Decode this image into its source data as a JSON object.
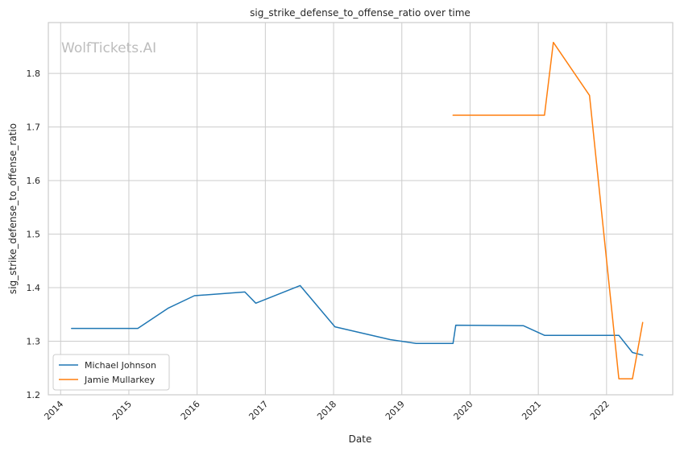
{
  "chart_data": {
    "type": "line",
    "title": "sig_strike_defense_to_offense_ratio over time",
    "xlabel": "Date",
    "ylabel": "sig_strike_defense_to_offense_ratio",
    "watermark": "WolfTickets.AI",
    "x_ticks": [
      "2014",
      "2015",
      "2016",
      "2017",
      "2018",
      "2019",
      "2020",
      "2021",
      "2022"
    ],
    "y_ticks": [
      "1.2",
      "1.3",
      "1.4",
      "1.5",
      "1.6",
      "1.7",
      "1.8"
    ],
    "xlim": [
      2013.82,
      2022.97
    ],
    "ylim": [
      1.2,
      1.895
    ],
    "grid": true,
    "legend_position": "lower-left",
    "series": [
      {
        "name": "Michael Johnson",
        "color": "#1f77b4",
        "points": [
          {
            "x": 2014.16,
            "y": 1.324
          },
          {
            "x": 2015.13,
            "y": 1.324
          },
          {
            "x": 2015.58,
            "y": 1.362
          },
          {
            "x": 2015.96,
            "y": 1.385
          },
          {
            "x": 2016.7,
            "y": 1.392
          },
          {
            "x": 2016.86,
            "y": 1.371
          },
          {
            "x": 2017.51,
            "y": 1.404
          },
          {
            "x": 2018.02,
            "y": 1.327
          },
          {
            "x": 2018.83,
            "y": 1.303
          },
          {
            "x": 2019.21,
            "y": 1.296
          },
          {
            "x": 2019.75,
            "y": 1.296
          },
          {
            "x": 2019.79,
            "y": 1.33
          },
          {
            "x": 2020.78,
            "y": 1.329
          },
          {
            "x": 2021.09,
            "y": 1.311
          },
          {
            "x": 2022.18,
            "y": 1.311
          },
          {
            "x": 2022.38,
            "y": 1.279
          },
          {
            "x": 2022.53,
            "y": 1.274
          }
        ]
      },
      {
        "name": "Jamie Mullarkey",
        "color": "#ff7f0e",
        "points": [
          {
            "x": 2019.75,
            "y": 1.722
          },
          {
            "x": 2021.09,
            "y": 1.722
          },
          {
            "x": 2021.22,
            "y": 1.858
          },
          {
            "x": 2021.75,
            "y": 1.759
          },
          {
            "x": 2022.18,
            "y": 1.23
          },
          {
            "x": 2022.38,
            "y": 1.23
          },
          {
            "x": 2022.53,
            "y": 1.335
          }
        ]
      }
    ]
  }
}
